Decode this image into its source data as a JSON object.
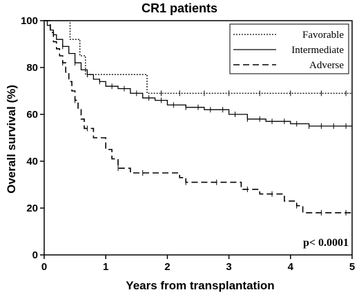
{
  "chart_data": {
    "type": "line",
    "step": true,
    "title": "CR1 patients",
    "xlabel": "Years from transplantation",
    "ylabel": "Overall survival (%)",
    "xlim": [
      0,
      5
    ],
    "ylim": [
      0,
      100
    ],
    "xticks": [
      "0",
      "1",
      "2",
      "3",
      "4",
      "5"
    ],
    "yticks": [
      "0",
      "20",
      "40",
      "60",
      "80",
      "100"
    ],
    "grid": false,
    "legend_position": "top-right",
    "annotation": "p< 0.0001",
    "series": [
      {
        "name": "Favorable",
        "line_style": "dotted",
        "points": [
          [
            0,
            100
          ],
          [
            0.42,
            100
          ],
          [
            0.42,
            92
          ],
          [
            0.58,
            92
          ],
          [
            0.58,
            85
          ],
          [
            0.67,
            85
          ],
          [
            0.67,
            77
          ],
          [
            1.67,
            77
          ],
          [
            1.67,
            69
          ],
          [
            5,
            69
          ]
        ],
        "censor_x": [
          1.9,
          2.2,
          2.6,
          3.0,
          3.5,
          4.0,
          4.5,
          4.9
        ]
      },
      {
        "name": "Intermediate",
        "line_style": "solid",
        "points": [
          [
            0,
            100
          ],
          [
            0.05,
            98
          ],
          [
            0.1,
            96
          ],
          [
            0.15,
            94
          ],
          [
            0.2,
            92
          ],
          [
            0.3,
            89
          ],
          [
            0.4,
            86
          ],
          [
            0.5,
            82
          ],
          [
            0.6,
            79
          ],
          [
            0.7,
            77
          ],
          [
            0.8,
            75
          ],
          [
            0.9,
            74
          ],
          [
            1.0,
            72
          ],
          [
            1.2,
            71
          ],
          [
            1.4,
            69
          ],
          [
            1.6,
            67
          ],
          [
            1.8,
            66
          ],
          [
            2.0,
            64
          ],
          [
            2.3,
            63
          ],
          [
            2.6,
            62
          ],
          [
            3.0,
            60
          ],
          [
            3.3,
            58
          ],
          [
            3.6,
            57
          ],
          [
            4.0,
            56
          ],
          [
            4.3,
            55
          ],
          [
            5,
            55
          ]
        ],
        "censor_x": [
          0.3,
          0.5,
          0.7,
          0.9,
          1.1,
          1.3,
          1.5,
          1.7,
          1.9,
          2.1,
          2.3,
          2.5,
          2.7,
          2.9,
          3.1,
          3.3,
          3.5,
          3.7,
          3.9,
          4.1,
          4.3,
          4.5,
          4.7,
          4.9
        ]
      },
      {
        "name": "Adverse",
        "line_style": "dashed",
        "points": [
          [
            0,
            100
          ],
          [
            0.1,
            95
          ],
          [
            0.15,
            91
          ],
          [
            0.2,
            88
          ],
          [
            0.25,
            85
          ],
          [
            0.3,
            82
          ],
          [
            0.35,
            78
          ],
          [
            0.4,
            74
          ],
          [
            0.45,
            70
          ],
          [
            0.5,
            66
          ],
          [
            0.55,
            62
          ],
          [
            0.6,
            58
          ],
          [
            0.65,
            54
          ],
          [
            0.8,
            50
          ],
          [
            1.0,
            45
          ],
          [
            1.1,
            41
          ],
          [
            1.2,
            37
          ],
          [
            1.4,
            35
          ],
          [
            2.2,
            33
          ],
          [
            2.3,
            31
          ],
          [
            3.2,
            28
          ],
          [
            3.5,
            26
          ],
          [
            3.9,
            23
          ],
          [
            4.1,
            21
          ],
          [
            4.2,
            18
          ],
          [
            5,
            18
          ]
        ],
        "censor_x": [
          0.3,
          0.5,
          0.7,
          1.2,
          1.6,
          2.3,
          2.8,
          3.3,
          3.7,
          4.1,
          4.5,
          4.9
        ]
      }
    ]
  }
}
